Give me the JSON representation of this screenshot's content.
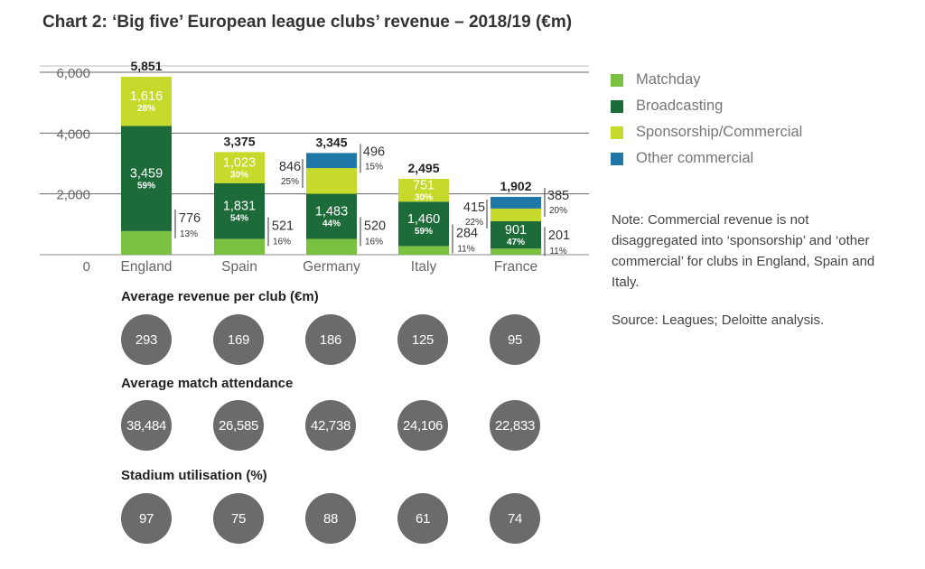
{
  "title": "Chart 2: ‘Big five’ European league clubs’ revenue – 2018/19 (€m)",
  "colors": {
    "matchday": "#7ac142",
    "broadcasting": "#1e6b3a",
    "sponsorship": "#c5da2a",
    "other": "#1f78a8",
    "grid": "#666666",
    "circle": "#6b6b6b"
  },
  "chart_data": {
    "type": "bar",
    "stacked": true,
    "categories": [
      "England",
      "Spain",
      "Germany",
      "Italy",
      "France"
    ],
    "ylim": [
      0,
      6000
    ],
    "yticks": [
      "0",
      "2,000",
      "4,000",
      "6,000"
    ],
    "grid": true,
    "legend_position": "right",
    "totals": [
      "5,851",
      "3,375",
      "3,345",
      "2,495",
      "1,902"
    ],
    "series": [
      {
        "name": "Matchday",
        "values": [
          776,
          521,
          520,
          284,
          201
        ],
        "labels": [
          "776",
          "521",
          "520",
          "284",
          "201"
        ],
        "pct": [
          "13%",
          "16%",
          "16%",
          "11%",
          "11%"
        ]
      },
      {
        "name": "Broadcasting",
        "values": [
          3459,
          1831,
          1483,
          1460,
          901
        ],
        "labels": [
          "3,459",
          "1,831",
          "1,483",
          "1,460",
          "901"
        ],
        "pct": [
          "59%",
          "54%",
          "44%",
          "59%",
          "47%"
        ]
      },
      {
        "name": "Sponsorship/Commercial",
        "values": [
          1616,
          1023,
          846,
          751,
          415
        ],
        "labels": [
          "1,616",
          "1,023",
          "846",
          "751",
          "415"
        ],
        "pct": [
          "28%",
          "30%",
          "25%",
          "30%",
          "22%"
        ]
      },
      {
        "name": "Other commercial",
        "values": [
          0,
          0,
          496,
          0,
          385
        ],
        "labels": [
          "",
          "",
          "496",
          "",
          "385"
        ],
        "pct": [
          "",
          "",
          "15%",
          "",
          "20%"
        ]
      }
    ]
  },
  "legend": [
    "Matchday",
    "Broadcasting",
    "Sponsorship/Commercial",
    "Other commercial"
  ],
  "note": "Note: Commercial revenue is not disaggregated into ‘sponsorship’ and ‘other commercial’ for clubs in England, Spain and Italy.",
  "source": "Source: Leagues; Deloitte analysis.",
  "sections": {
    "avg_revenue": {
      "title": "Average revenue per club (€m)",
      "values": [
        "293",
        "169",
        "186",
        "125",
        "95"
      ]
    },
    "attendance": {
      "title": "Average match attendance",
      "values": [
        "38,484",
        "26,585",
        "42,738",
        "24,106",
        "22,833"
      ]
    },
    "utilisation": {
      "title": "Stadium utilisation (%)",
      "values": [
        "97",
        "75",
        "88",
        "61",
        "74"
      ]
    }
  }
}
